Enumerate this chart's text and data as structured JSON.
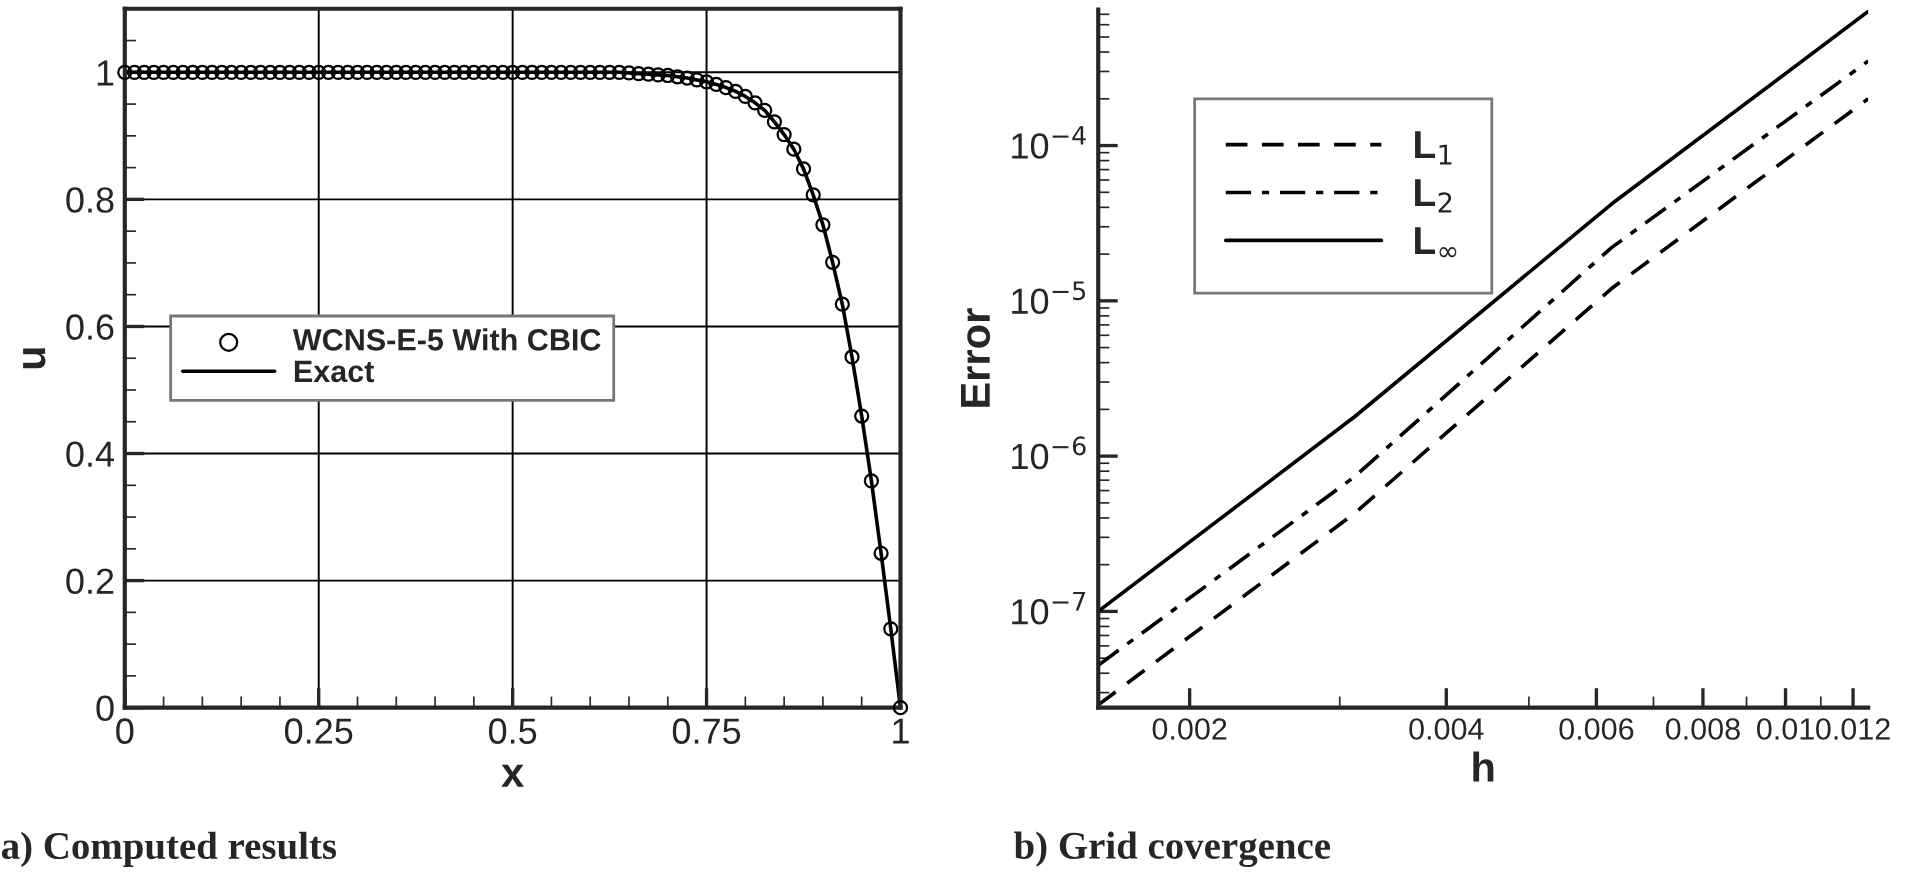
{
  "chart_data": [
    {
      "type": "scatter",
      "title": "a) Computed results",
      "xlabel": "x",
      "ylabel": "u",
      "x": [
        0,
        0.0125,
        0.025,
        0.0375,
        0.05,
        0.0625,
        0.075,
        0.0875,
        0.1,
        0.1125,
        0.125,
        0.1375,
        0.15,
        0.1625,
        0.175,
        0.1875,
        0.2,
        0.2125,
        0.225,
        0.2375,
        0.25,
        0.2625,
        0.275,
        0.2875,
        0.3,
        0.3125,
        0.325,
        0.3375,
        0.35,
        0.3625,
        0.375,
        0.3875,
        0.4,
        0.4125,
        0.425,
        0.4375,
        0.45,
        0.4625,
        0.475,
        0.4875,
        0.5,
        0.5125,
        0.525,
        0.5375,
        0.55,
        0.5625,
        0.575,
        0.5875,
        0.6,
        0.6125,
        0.625,
        0.6375,
        0.65,
        0.6625,
        0.675,
        0.6875,
        0.7,
        0.7125,
        0.725,
        0.7375,
        0.75,
        0.7625,
        0.775,
        0.7875,
        0.8,
        0.8125,
        0.825,
        0.8375,
        0.85,
        0.8625,
        0.875,
        0.8875,
        0.9,
        0.9125,
        0.925,
        0.9375,
        0.95,
        0.9625,
        0.975,
        0.9875,
        1
      ],
      "series": [
        {
          "name": "WCNS-E-5 With CBIC",
          "type": "scatter",
          "color": "#000000",
          "marker": "circle",
          "values": [
            1,
            1,
            1,
            1,
            1,
            1,
            1,
            1,
            1,
            1,
            1,
            1,
            1,
            1,
            1,
            1,
            1,
            1,
            1,
            1,
            1,
            1,
            1,
            1,
            1,
            1,
            1,
            1,
            1,
            1,
            1,
            1,
            1,
            1,
            1,
            1,
            1,
            1,
            1,
            1,
            1,
            1,
            1,
            1,
            1,
            1,
            1,
            1,
            1,
            1,
            1,
            1,
            0.999,
            0.998,
            0.997,
            0.996,
            0.995,
            0.993,
            0.991,
            0.988,
            0.985,
            0.981,
            0.976,
            0.97,
            0.962,
            0.952,
            0.94,
            0.922,
            0.902,
            0.879,
            0.848,
            0.807,
            0.76,
            0.701,
            0.635,
            0.552,
            0.459,
            0.357,
            0.243,
            0.124,
            0
          ]
        },
        {
          "name": "Exact",
          "type": "line",
          "color": "#000000",
          "line_style": "solid",
          "values": [
            1,
            1,
            1,
            1,
            1,
            1,
            1,
            1,
            1,
            1,
            1,
            1,
            1,
            1,
            1,
            1,
            1,
            1,
            1,
            1,
            1,
            1,
            1,
            1,
            1,
            1,
            1,
            1,
            1,
            1,
            1,
            1,
            1,
            1,
            1,
            1,
            1,
            1,
            1,
            1,
            1,
            1,
            1,
            1,
            1,
            1,
            1,
            1,
            1,
            1,
            1,
            1,
            0.999,
            0.998,
            0.997,
            0.996,
            0.995,
            0.993,
            0.991,
            0.988,
            0.985,
            0.981,
            0.976,
            0.97,
            0.962,
            0.952,
            0.94,
            0.922,
            0.902,
            0.879,
            0.848,
            0.807,
            0.76,
            0.701,
            0.635,
            0.552,
            0.459,
            0.357,
            0.243,
            0.124,
            0
          ]
        }
      ],
      "xlim": [
        0,
        1
      ],
      "xticks": [
        0,
        0.25,
        0.5,
        0.75,
        1
      ],
      "ylim": [
        0,
        1.1
      ],
      "yticks": [
        0,
        0.2,
        0.4,
        0.6,
        0.8,
        1
      ],
      "grid": true,
      "legend": "left"
    },
    {
      "type": "line",
      "title": "b) Grid covergence",
      "xlabel": "h",
      "ylabel": "Error",
      "log": "xy",
      "x": [
        0.0015625,
        0.003125,
        0.00625,
        0.0125
      ],
      "series": [
        {
          "name": "L$_{1}$",
          "color": "#000000",
          "line_style": "dashed",
          "values": [
            2.5e-08,
            4.3e-07,
            1.2e-05,
            0.0002
          ]
        },
        {
          "name": "L$_{2}$",
          "color": "#000000",
          "line_style": "dashdot",
          "values": [
            4.5e-08,
            7.4e-07,
            2.2e-05,
            0.00035
          ]
        },
        {
          "name": "L$_{∞}$",
          "color": "#000000",
          "line_style": "solid",
          "values": [
            1e-07,
            1.8e-06,
            4.2e-05,
            0.00073
          ]
        }
      ],
      "xlim": [
        0.0015625,
        0.0125
      ],
      "xticks": [
        0.002,
        0.004,
        0.006,
        0.008,
        0.01,
        0.012
      ],
      "ylim": [
        2.4e-08,
        0.00075
      ],
      "yticks": [
        {
          "value": 1e-07,
          "label": "10$^{−7}$"
        },
        {
          "value": 1e-06,
          "label": "10$^{−6}$"
        },
        {
          "value": 1e-05,
          "label": "10$^{−5}$"
        },
        {
          "value": 0.0001,
          "label": "10$^{−4}$"
        }
      ],
      "grid": false,
      "legend": "upper left"
    }
  ]
}
